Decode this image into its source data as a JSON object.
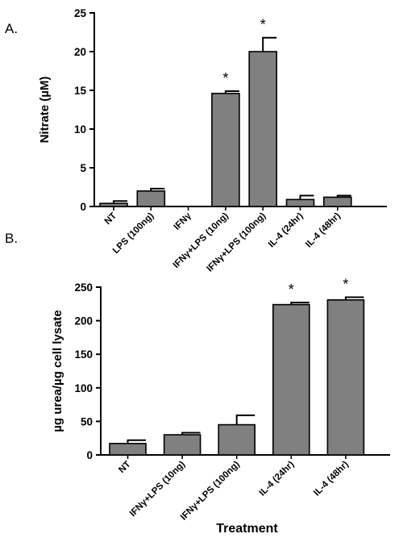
{
  "panels": [
    {
      "label": "A."
    },
    {
      "label": "B."
    }
  ],
  "chart_data": [
    {
      "type": "bar",
      "title": "",
      "ylabel": "Nitrate (µM)",
      "xlabel": "",
      "categories": [
        "NT",
        "LPS (100ng)",
        "IFNγ",
        "IFNγ+LPS (10ng)",
        "IFNγ+LPS (100ng)",
        "IL-4 (24hr)",
        "IL-4 (48hr)"
      ],
      "values": [
        0.4,
        2.0,
        0,
        14.6,
        20.0,
        0.9,
        1.2
      ],
      "errors": [
        0.3,
        0.3,
        0,
        0.3,
        1.8,
        0.5,
        0.2
      ],
      "significance": [
        "",
        "",
        "",
        "*",
        "*",
        "",
        ""
      ],
      "ylim": [
        0,
        25
      ],
      "yticks": [
        "0",
        "5",
        "10",
        "15",
        "20",
        "25"
      ],
      "bar_color": "#808080",
      "grid": false
    },
    {
      "type": "bar",
      "title": "",
      "ylabel": "µg urea/µg cell lysate",
      "xlabel": "Treatment",
      "categories": [
        "NT",
        "IFNγ+LPS (10ng)",
        "IFNγ+LPS (100ng)",
        "IL-4 (24hr)",
        "IL-4 (48hr)"
      ],
      "values": [
        17,
        30,
        45,
        224,
        231
      ],
      "errors": [
        5,
        3,
        14,
        3,
        4
      ],
      "significance": [
        "",
        "",
        "",
        "*",
        "*"
      ],
      "ylim": [
        0,
        250
      ],
      "yticks": [
        "0",
        "50",
        "100",
        "150",
        "200",
        "250"
      ],
      "bar_color": "#808080",
      "grid": false
    }
  ]
}
